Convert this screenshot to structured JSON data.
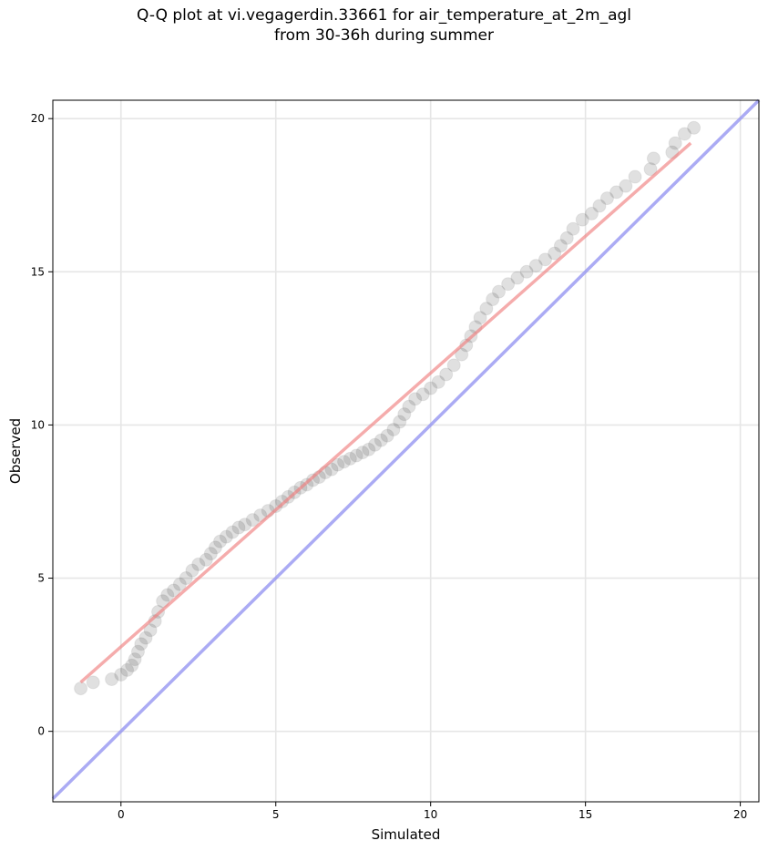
{
  "chart_data": {
    "type": "scatter",
    "title": [
      "Q-Q plot at vi.vegagerdin.33661 for air_temperature_at_2m_agl",
      "from 30-36h during summer"
    ],
    "xlabel": "Simulated",
    "ylabel": "Observed",
    "xlim": [
      -2.2,
      20.6
    ],
    "ylim": [
      -2.3,
      20.6
    ],
    "xticks": [
      0,
      5,
      10,
      15,
      20
    ],
    "yticks": [
      0,
      5,
      10,
      15,
      20
    ],
    "grid": true,
    "scatter_color": "#000000",
    "fit_line": {
      "color": "#f08080",
      "x": [
        -1.3,
        18.4
      ],
      "y": [
        1.6,
        19.2
      ]
    },
    "identity_line": {
      "color": "#8f8ff0",
      "x": [
        -2.2,
        20.6
      ],
      "y": [
        -2.2,
        20.6
      ]
    },
    "points": [
      [
        -1.3,
        1.4
      ],
      [
        -0.9,
        1.6
      ],
      [
        -0.3,
        1.7
      ],
      [
        0.0,
        1.85
      ],
      [
        0.2,
        2.0
      ],
      [
        0.35,
        2.15
      ],
      [
        0.45,
        2.35
      ],
      [
        0.55,
        2.6
      ],
      [
        0.65,
        2.85
      ],
      [
        0.8,
        3.05
      ],
      [
        0.95,
        3.3
      ],
      [
        1.1,
        3.6
      ],
      [
        1.2,
        3.9
      ],
      [
        1.35,
        4.25
      ],
      [
        1.5,
        4.45
      ],
      [
        1.7,
        4.6
      ],
      [
        1.9,
        4.8
      ],
      [
        2.1,
        5.0
      ],
      [
        2.3,
        5.25
      ],
      [
        2.5,
        5.45
      ],
      [
        2.75,
        5.6
      ],
      [
        2.9,
        5.8
      ],
      [
        3.05,
        6.0
      ],
      [
        3.2,
        6.2
      ],
      [
        3.4,
        6.35
      ],
      [
        3.6,
        6.5
      ],
      [
        3.8,
        6.65
      ],
      [
        4.0,
        6.75
      ],
      [
        4.25,
        6.9
      ],
      [
        4.5,
        7.05
      ],
      [
        4.75,
        7.2
      ],
      [
        5.0,
        7.35
      ],
      [
        5.2,
        7.5
      ],
      [
        5.4,
        7.65
      ],
      [
        5.6,
        7.8
      ],
      [
        5.8,
        7.95
      ],
      [
        6.0,
        8.05
      ],
      [
        6.2,
        8.2
      ],
      [
        6.4,
        8.3
      ],
      [
        6.6,
        8.45
      ],
      [
        6.8,
        8.55
      ],
      [
        7.0,
        8.7
      ],
      [
        7.2,
        8.8
      ],
      [
        7.4,
        8.9
      ],
      [
        7.6,
        9.0
      ],
      [
        7.8,
        9.1
      ],
      [
        8.0,
        9.2
      ],
      [
        8.2,
        9.35
      ],
      [
        8.4,
        9.5
      ],
      [
        8.6,
        9.65
      ],
      [
        8.8,
        9.85
      ],
      [
        9.0,
        10.1
      ],
      [
        9.15,
        10.35
      ],
      [
        9.3,
        10.6
      ],
      [
        9.5,
        10.85
      ],
      [
        9.75,
        11.0
      ],
      [
        10.0,
        11.2
      ],
      [
        10.25,
        11.4
      ],
      [
        10.5,
        11.65
      ],
      [
        10.75,
        11.95
      ],
      [
        11.0,
        12.3
      ],
      [
        11.15,
        12.6
      ],
      [
        11.3,
        12.9
      ],
      [
        11.45,
        13.2
      ],
      [
        11.6,
        13.5
      ],
      [
        11.8,
        13.8
      ],
      [
        12.0,
        14.1
      ],
      [
        12.2,
        14.35
      ],
      [
        12.5,
        14.6
      ],
      [
        12.8,
        14.8
      ],
      [
        13.1,
        15.0
      ],
      [
        13.4,
        15.2
      ],
      [
        13.7,
        15.4
      ],
      [
        14.0,
        15.6
      ],
      [
        14.2,
        15.85
      ],
      [
        14.4,
        16.1
      ],
      [
        14.6,
        16.4
      ],
      [
        14.9,
        16.7
      ],
      [
        15.2,
        16.9
      ],
      [
        15.45,
        17.15
      ],
      [
        15.7,
        17.4
      ],
      [
        16.0,
        17.6
      ],
      [
        16.3,
        17.8
      ],
      [
        16.6,
        18.1
      ],
      [
        17.1,
        18.35
      ],
      [
        17.2,
        18.7
      ],
      [
        17.8,
        18.9
      ],
      [
        17.9,
        19.2
      ],
      [
        18.2,
        19.5
      ],
      [
        18.5,
        19.7
      ]
    ]
  }
}
